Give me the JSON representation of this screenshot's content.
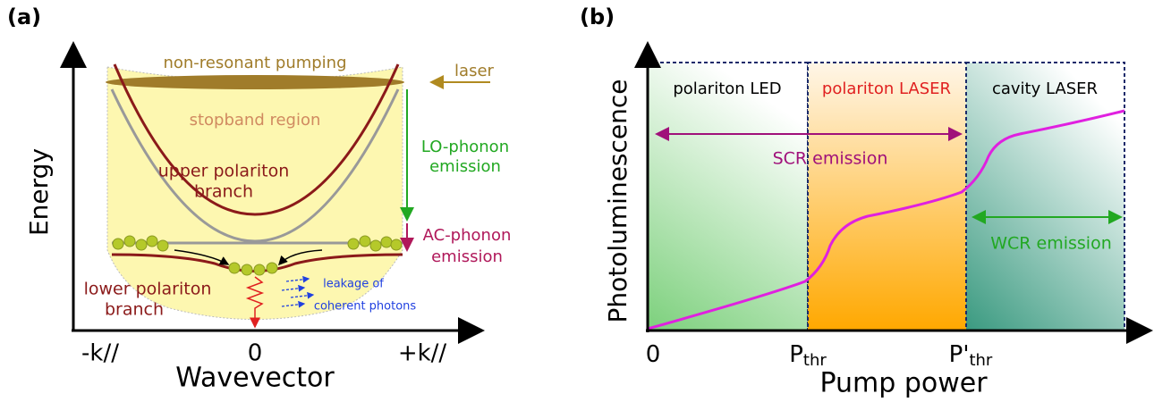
{
  "panel_a": {
    "label": "(a)",
    "pumping": "non-resonant pumping",
    "laser": "laser",
    "stopband": "stopband region",
    "lo_phonon": [
      "LO-phonon",
      "emission"
    ],
    "ac_phonon": [
      "AC-phonon",
      "emission"
    ],
    "upper_branch": [
      "upper polariton",
      "branch"
    ],
    "lower_branch": [
      "lower polariton",
      "branch"
    ],
    "leakage": [
      "leakage of",
      "coherent photons"
    ],
    "y_axis": "Energy",
    "x_axis": "Wavevector",
    "x_ticks": [
      "-k//",
      "0",
      "+k//"
    ]
  },
  "panel_b": {
    "label": "(b)",
    "regions": [
      "polariton LED",
      "polariton LASER",
      "cavity LASER"
    ],
    "scr": "SCR emission",
    "wcr": "WCR emission",
    "y_axis": "Photoluminescence",
    "x_axis": "Pump power",
    "x_ticks": [
      {
        "main": "0"
      },
      {
        "main": "P",
        "sub": "thr"
      },
      {
        "main": "P'",
        "sub": "thr"
      }
    ]
  }
}
